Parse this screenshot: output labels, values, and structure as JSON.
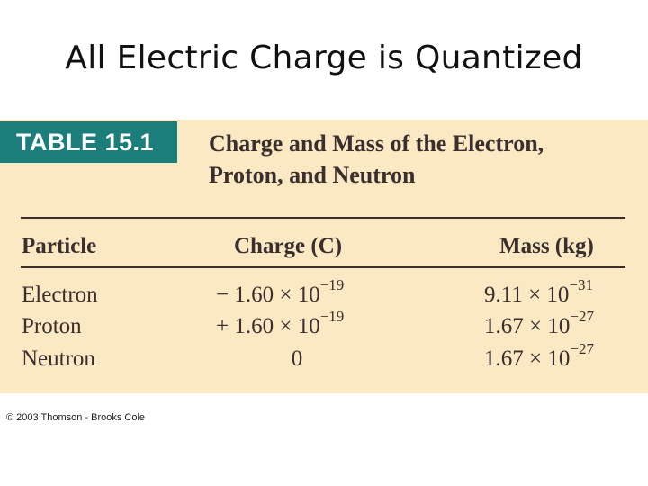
{
  "slide": {
    "title": "All Electric Charge is Quantized"
  },
  "table": {
    "badge": "TABLE 15.1",
    "caption_line1": "Charge and Mass of the Electron,",
    "caption_line2": "Proton, and Neutron",
    "columns": [
      "Particle",
      "Charge (C)",
      "Mass (kg)"
    ],
    "rows": [
      {
        "particle": "Electron",
        "charge_mantissa": "− 1.60 × 10",
        "charge_exponent": "−19",
        "mass_mantissa": "9.11 × 10",
        "mass_exponent": "−31"
      },
      {
        "particle": "Proton",
        "charge_mantissa": "+ 1.60 × 10",
        "charge_exponent": "−19",
        "mass_mantissa": "1.67 × 10",
        "mass_exponent": "−27"
      },
      {
        "particle": "Neutron",
        "charge_mantissa": "0",
        "charge_exponent": "",
        "mass_mantissa": "1.67 × 10",
        "mass_exponent": "−27"
      }
    ]
  },
  "footer": {
    "copyright": "© 2003 Thomson - Brooks Cole"
  },
  "colors": {
    "panel_background": "#fbe9c3",
    "badge_background": "#1b7e7a",
    "text": "#3a2e2e"
  }
}
